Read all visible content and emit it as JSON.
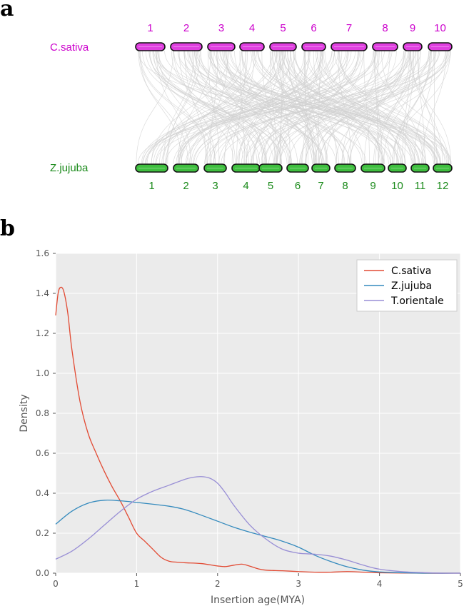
{
  "panel_a": {
    "letter": "a",
    "genome_top": {
      "name": "C.sativa",
      "color": "#cc00cc",
      "fill": "#e040e0",
      "chromosomes": [
        "1",
        "2",
        "3",
        "4",
        "5",
        "6",
        "7",
        "8",
        "9",
        "10"
      ]
    },
    "genome_bottom": {
      "name": "Z.jujuba",
      "color": "#1a8a1a",
      "fill": "#3fbf3f",
      "chromosomes": [
        "1",
        "2",
        "3",
        "4",
        "5",
        "6",
        "7",
        "8",
        "9",
        "10",
        "11",
        "12"
      ]
    },
    "link_color": "#d0d0d0"
  },
  "panel_b": {
    "letter": "b"
  },
  "chart_data": {
    "type": "line",
    "title": "",
    "xlabel": "Insertion age(MYA)",
    "ylabel": "Density",
    "xlim": [
      0,
      5
    ],
    "ylim": [
      0,
      1.6
    ],
    "xticks": [
      "0",
      "1",
      "2",
      "3",
      "4",
      "5"
    ],
    "yticks": [
      "0.0",
      "0.2",
      "0.4",
      "0.6",
      "0.8",
      "1.0",
      "1.2",
      "1.4",
      "1.6"
    ],
    "grid": true,
    "legend_position": "top-right",
    "background": "#ebebeb",
    "series": [
      {
        "name": "C.sativa",
        "color": "#e24a33",
        "x": [
          0,
          0.03,
          0.06,
          0.1,
          0.15,
          0.2,
          0.3,
          0.4,
          0.5,
          0.6,
          0.7,
          0.8,
          0.9,
          1.0,
          1.1,
          1.2,
          1.3,
          1.4,
          1.5,
          1.6,
          1.8,
          2.0,
          2.1,
          2.2,
          2.3,
          2.4,
          2.5,
          2.6,
          2.8,
          3.0,
          3.2,
          3.4,
          3.6,
          3.8,
          4.0,
          4.5,
          5.0
        ],
        "y": [
          1.29,
          1.4,
          1.43,
          1.41,
          1.3,
          1.12,
          0.86,
          0.7,
          0.6,
          0.51,
          0.43,
          0.36,
          0.28,
          0.2,
          0.16,
          0.12,
          0.08,
          0.06,
          0.055,
          0.052,
          0.048,
          0.036,
          0.033,
          0.04,
          0.045,
          0.035,
          0.022,
          0.015,
          0.012,
          0.008,
          0.005,
          0.005,
          0.008,
          0.005,
          0.002,
          0.0,
          0.0
        ]
      },
      {
        "name": "Z.jujuba",
        "color": "#348abd",
        "x": [
          0,
          0.2,
          0.4,
          0.6,
          0.8,
          1.0,
          1.2,
          1.4,
          1.6,
          1.8,
          2.0,
          2.2,
          2.4,
          2.6,
          2.8,
          3.0,
          3.2,
          3.4,
          3.6,
          3.8,
          4.0,
          4.3,
          4.6,
          5.0
        ],
        "y": [
          0.245,
          0.31,
          0.35,
          0.365,
          0.362,
          0.354,
          0.345,
          0.335,
          0.318,
          0.29,
          0.26,
          0.23,
          0.205,
          0.183,
          0.16,
          0.13,
          0.09,
          0.058,
          0.032,
          0.015,
          0.006,
          0.002,
          0.0,
          0.0
        ]
      },
      {
        "name": "T.orientale",
        "color": "#988ed5",
        "x": [
          0,
          0.2,
          0.4,
          0.6,
          0.8,
          1.0,
          1.2,
          1.4,
          1.6,
          1.7,
          1.8,
          1.9,
          2.0,
          2.1,
          2.2,
          2.4,
          2.6,
          2.8,
          3.0,
          3.2,
          3.4,
          3.6,
          3.8,
          4.0,
          4.3,
          4.6,
          4.8,
          5.0
        ],
        "y": [
          0.07,
          0.11,
          0.17,
          0.24,
          0.31,
          0.37,
          0.41,
          0.44,
          0.47,
          0.48,
          0.483,
          0.476,
          0.45,
          0.4,
          0.34,
          0.24,
          0.17,
          0.12,
          0.1,
          0.095,
          0.085,
          0.065,
          0.04,
          0.02,
          0.007,
          0.002,
          0.0,
          0.0
        ]
      }
    ]
  }
}
